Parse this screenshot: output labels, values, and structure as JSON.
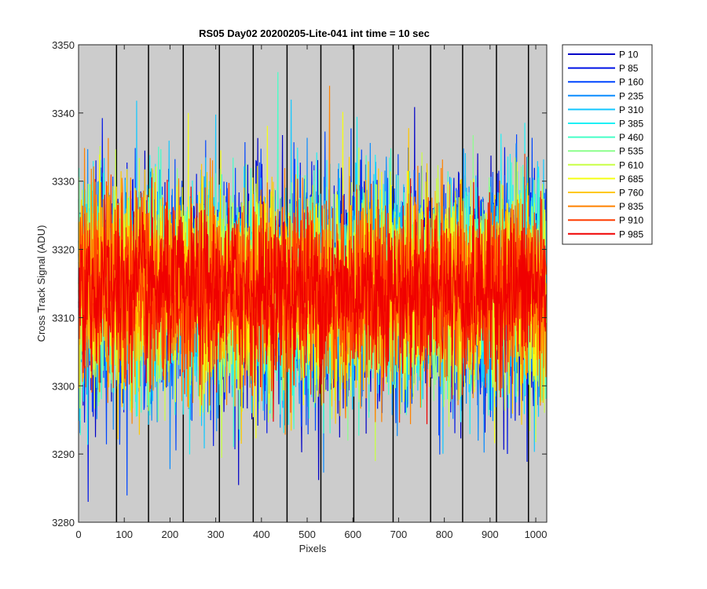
{
  "chart_data": {
    "type": "line",
    "title": "RS05 Day02 20200205-Lite-041 int time = 10 sec",
    "xlabel": "Pixels",
    "ylabel": "Cross Track Signal (ADU)",
    "xlim": [
      0,
      1024
    ],
    "ylim": [
      3280,
      3350
    ],
    "xticks": [
      0,
      100,
      200,
      300,
      400,
      500,
      600,
      700,
      800,
      900,
      1000
    ],
    "yticks": [
      3280,
      3290,
      3300,
      3310,
      3320,
      3330,
      3340,
      3350
    ],
    "tick_labels_x": [
      "0",
      "100",
      "200",
      "300",
      "400",
      "500",
      "600",
      "700",
      "800",
      "900",
      "1000"
    ],
    "tick_labels_y": [
      "3280",
      "3290",
      "3300",
      "3310",
      "3320",
      "3330",
      "3340",
      "3350"
    ],
    "vertical_lines_x": [
      83,
      153,
      229,
      308,
      382,
      456,
      530,
      602,
      688,
      770,
      840,
      914,
      984
    ],
    "background": "#cccccc",
    "legend_position": "outside-top-right",
    "series_note": "Dense noisy signal per series, ~1024 points each, centered near 3314 ADU with spread roughly 3283-3346",
    "series": [
      {
        "name": "P 10",
        "color": "#0000c8",
        "mean": 3314
      },
      {
        "name": "P 85",
        "color": "#0014e6",
        "mean": 3314
      },
      {
        "name": "P 160",
        "color": "#0046ff",
        "mean": 3314
      },
      {
        "name": "P 235",
        "color": "#0a8cff",
        "mean": 3314
      },
      {
        "name": "P 310",
        "color": "#14c8ff",
        "mean": 3314
      },
      {
        "name": "P 385",
        "color": "#1ef0f5",
        "mean": 3314
      },
      {
        "name": "P 460",
        "color": "#46ffc8",
        "mean": 3314
      },
      {
        "name": "P 535",
        "color": "#8cff8c",
        "mean": 3314
      },
      {
        "name": "P 610",
        "color": "#c8ff46",
        "mean": 3314
      },
      {
        "name": "P 685",
        "color": "#f5ff14",
        "mean": 3314
      },
      {
        "name": "P 760",
        "color": "#ffc800",
        "mean": 3314
      },
      {
        "name": "P 835",
        "color": "#ff8200",
        "mean": 3314
      },
      {
        "name": "P 910",
        "color": "#ff3c00",
        "mean": 3314
      },
      {
        "name": "P 985",
        "color": "#f00000",
        "mean": 3314
      }
    ]
  }
}
